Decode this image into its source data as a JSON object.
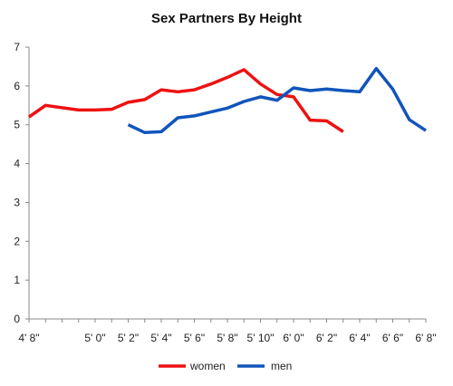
{
  "chart_data": {
    "type": "line",
    "title": "Sex Partners By Height",
    "xlabel": "",
    "ylabel": "",
    "x": [
      "4' 8\"",
      "4' 9\"",
      "4' 10\"",
      "4' 11\"",
      "5' 0\"",
      "5' 1\"",
      "5' 2\"",
      "5' 3\"",
      "5' 4\"",
      "5' 5\"",
      "5' 6\"",
      "5' 7\"",
      "5' 8\"",
      "5' 9\"",
      "5' 10\"",
      "5' 11\"",
      "6' 0\"",
      "6' 1\"",
      "6' 2\"",
      "6' 3\"",
      "6' 4\"",
      "6' 5\"",
      "6' 6\"",
      "6' 7\"",
      "6' 8\""
    ],
    "x_tick_labels": [
      "4' 8\"",
      "5' 0\"",
      "5' 2\"",
      "5' 4\"",
      "5' 6\"",
      "5' 8\"",
      "5' 10\"",
      "6' 0\"",
      "6' 2\"",
      "6' 4\"",
      "6' 6\"",
      "6' 8\""
    ],
    "ylim": [
      0,
      7
    ],
    "y_ticks": [
      0,
      1,
      2,
      3,
      4,
      5,
      6,
      7
    ],
    "grid": false,
    "legend": "bottom",
    "series": [
      {
        "name": "women",
        "color": "#ee1111",
        "values": [
          5.2,
          5.5,
          5.44,
          5.38,
          5.38,
          5.4,
          5.58,
          5.65,
          5.9,
          5.85,
          5.9,
          6.05,
          6.22,
          6.42,
          6.05,
          5.78,
          5.72,
          5.12,
          5.1,
          4.82,
          null,
          null,
          null,
          null,
          null
        ]
      },
      {
        "name": "men",
        "color": "#1155bb",
        "values": [
          null,
          null,
          null,
          null,
          null,
          null,
          5.0,
          4.8,
          4.82,
          5.18,
          5.23,
          5.33,
          5.43,
          5.6,
          5.72,
          5.63,
          5.95,
          5.88,
          5.92,
          5.88,
          5.85,
          6.45,
          5.92,
          5.13,
          4.85
        ]
      }
    ]
  }
}
